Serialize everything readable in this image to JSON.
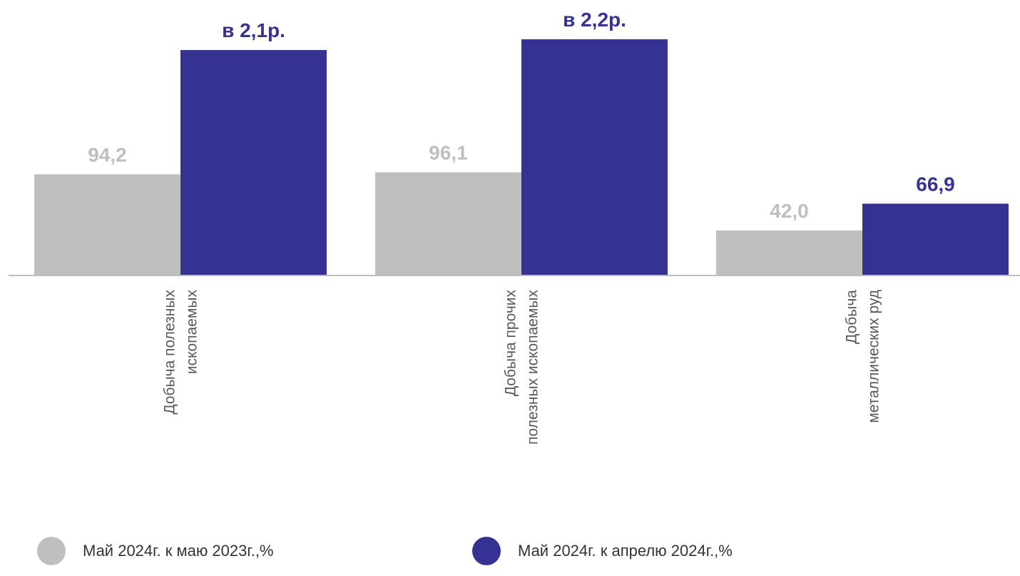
{
  "chart_data": {
    "type": "bar",
    "categories": [
      [
        "Добыча полезных",
        "ископаемых"
      ],
      [
        "Добыча прочих",
        "полезных ископаемых"
      ],
      [
        "Добыча",
        "металлических руд"
      ]
    ],
    "series": [
      {
        "name": "Май 2024г. к маю 2023г.,%",
        "color": "#bfbfbf",
        "values": [
          94.2,
          96.1,
          42.0
        ],
        "labels": [
          "94,2",
          "96,1",
          "42,0"
        ]
      },
      {
        "name": "Май 2024г. к апрелю 2024г.,%",
        "color": "#363294",
        "values": [
          210,
          220,
          66.9
        ],
        "labels": [
          "в 2,1р.",
          "в 2,2р.",
          "66,9"
        ]
      }
    ],
    "ylim": [
      0,
      230
    ],
    "grid": false,
    "legend_position": "bottom"
  }
}
